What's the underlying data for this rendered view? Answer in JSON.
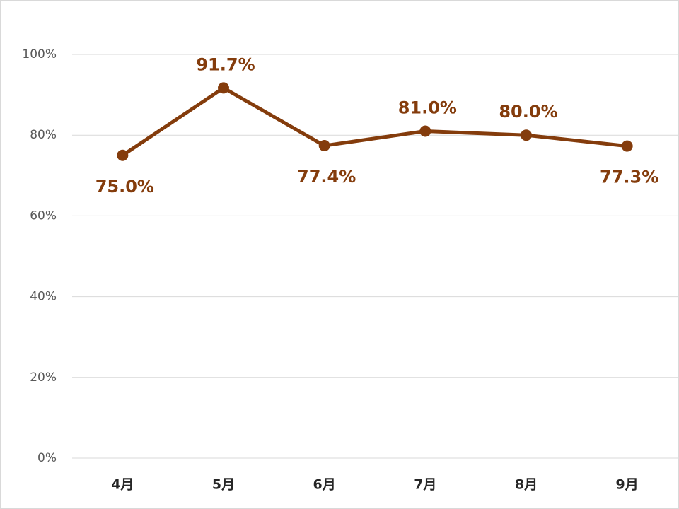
{
  "chart_data": {
    "type": "line",
    "categories": [
      "4月",
      "5月",
      "6月",
      "7月",
      "8月",
      "9月"
    ],
    "series": [
      {
        "color": "#843c0c",
        "values": [
          75.0,
          91.7,
          77.4,
          81.0,
          80.0,
          77.3
        ],
        "value_labels": [
          "75.0%",
          "91.7%",
          "77.4%",
          "81.0%",
          "80.0%",
          "77.3%"
        ]
      }
    ],
    "ylim": [
      0,
      100
    ],
    "yticks": [
      {
        "value": 0,
        "label": "0%"
      },
      {
        "value": 20,
        "label": "20%"
      },
      {
        "value": 40,
        "label": "40%"
      },
      {
        "value": 60,
        "label": "60%"
      },
      {
        "value": 80,
        "label": "80%"
      },
      {
        "value": 100,
        "label": "100%"
      }
    ],
    "grid": true
  }
}
